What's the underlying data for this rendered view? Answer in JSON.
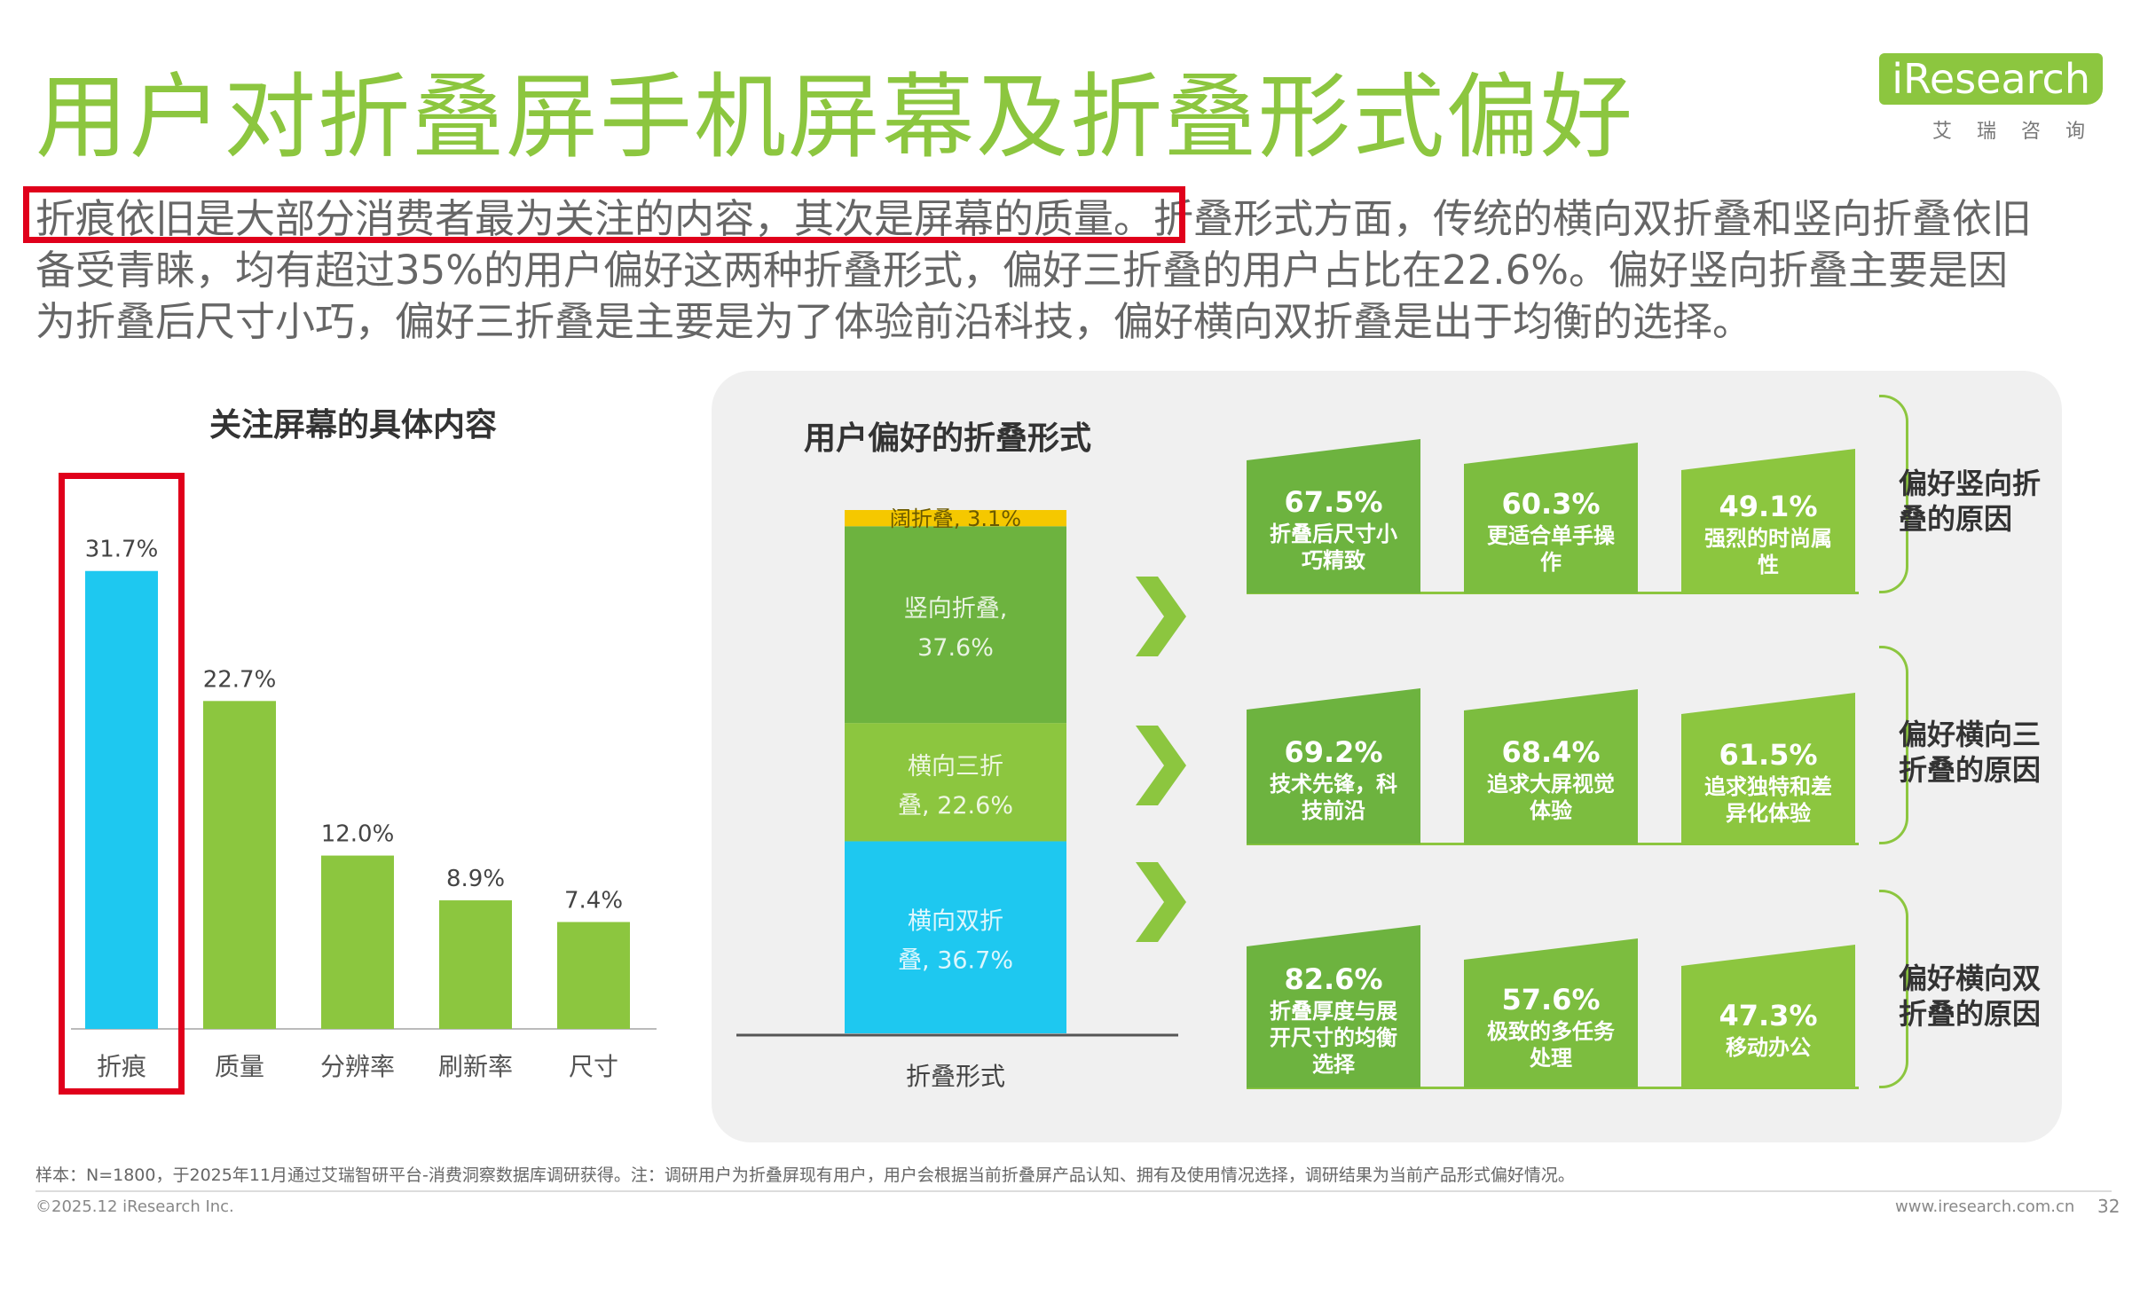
{
  "page": {
    "title": "用户对折叠屏手机屏幕及折叠形式偏好",
    "logo": {
      "brand": "iResearch",
      "sub": "艾瑞咨询"
    },
    "summary_highlight": "折痕依旧是大部分消费者最为关注的内容，其次是屏幕的质量。",
    "summary_rest": "折叠形式方面，传统的横向双折叠和竖向折叠依旧备受青睐，均有超过35%的用户偏好这两种折叠形式，偏好三折叠的用户占比在22.6%。偏好竖向折叠主要是因为折叠后尺寸小巧，偏好三折叠是主要是为了体验前沿科技，偏好横向双折叠是出于均衡的选择。",
    "footer_note": "样本：N=1800，于2025年11月通过艾瑞智研平台-消费洞察数据库调研获得。注：调研用户为折叠屏现有用户，用户会根据当前折叠屏产品认知、拥有及使用情况选择，调研结果为当前产品形式偏好情况。",
    "footer_copy": "©2025.12 iResearch Inc.",
    "footer_url": "www.iresearch.com.cn",
    "page_number": "32"
  },
  "colors": {
    "green": "#8cc63f",
    "dark_green": "#5ea83f",
    "mid_green": "#6db33f",
    "cyan": "#1ec8f0",
    "yellow": "#f5c800",
    "highlight_red": "#e0001b"
  },
  "chart_data": [
    {
      "type": "bar",
      "title": "关注屏幕的具体内容",
      "categories": [
        "折痕",
        "质量",
        "分辨率",
        "刷新率",
        "尺寸"
      ],
      "values": [
        31.7,
        22.7,
        12.0,
        8.9,
        7.4
      ],
      "labels": [
        "31.7%",
        "22.7%",
        "12.0%",
        "8.9%",
        "7.4%"
      ],
      "ylim": [
        0,
        35
      ],
      "grid": false,
      "highlight_category": "折痕"
    },
    {
      "type": "bar",
      "title": "用户偏好的折叠形式",
      "xlabel": "折叠形式",
      "stacked": true,
      "categories": [
        "折叠形式"
      ],
      "segments": [
        {
          "name": "横向双折叠",
          "value": 36.7,
          "label_lines": [
            "横向双折",
            "叠, 36.7%"
          ],
          "color": "#1ec8f0"
        },
        {
          "name": "横向三折叠",
          "value": 22.6,
          "label_lines": [
            "横向三折",
            "叠, 22.6%"
          ],
          "color": "#8cc63f"
        },
        {
          "name": "竖向折叠",
          "value": 37.6,
          "label_lines": [
            "竖向折叠,",
            "37.6%"
          ],
          "color": "#6db33f"
        },
        {
          "name": "阔折叠",
          "value": 3.1,
          "label_lines": [
            "阔折叠, 3.1%"
          ],
          "color": "#f5c800"
        }
      ],
      "ylim": [
        0,
        100
      ]
    },
    {
      "type": "bar",
      "title": "偏好竖向折叠的原因",
      "values": [
        67.5,
        60.3,
        49.1
      ],
      "reasons": [
        {
          "value": "67.5%",
          "lines": [
            "折叠后尺寸小",
            "巧精致"
          ]
        },
        {
          "value": "60.3%",
          "lines": [
            "更适合单手操",
            "作"
          ]
        },
        {
          "value": "49.1%",
          "lines": [
            "强烈的时尚属",
            "性"
          ]
        }
      ]
    },
    {
      "type": "bar",
      "title": "偏好横向三折叠的原因",
      "values": [
        69.2,
        68.4,
        61.5
      ],
      "reasons": [
        {
          "value": "69.2%",
          "lines": [
            "技术先锋，科",
            "技前沿"
          ]
        },
        {
          "value": "68.4%",
          "lines": [
            "追求大屏视觉",
            "体验"
          ]
        },
        {
          "value": "61.5%",
          "lines": [
            "追求独特和差",
            "异化体验"
          ]
        }
      ]
    },
    {
      "type": "bar",
      "title": "偏好横向双折叠的原因",
      "values": [
        82.6,
        57.6,
        47.3
      ],
      "reasons": [
        {
          "value": "82.6%",
          "lines": [
            "折叠厚度与展",
            "开尺寸的均衡",
            "选择"
          ]
        },
        {
          "value": "57.6%",
          "lines": [
            "极致的多任务",
            "处理"
          ]
        },
        {
          "value": "47.3%",
          "lines": [
            "移动办公"
          ]
        }
      ]
    }
  ],
  "reason_group_labels": [
    [
      "偏好竖向折",
      "叠的原因"
    ],
    [
      "偏好横向三",
      "折叠的原因"
    ],
    [
      "偏好横向双",
      "折叠的原因"
    ]
  ]
}
